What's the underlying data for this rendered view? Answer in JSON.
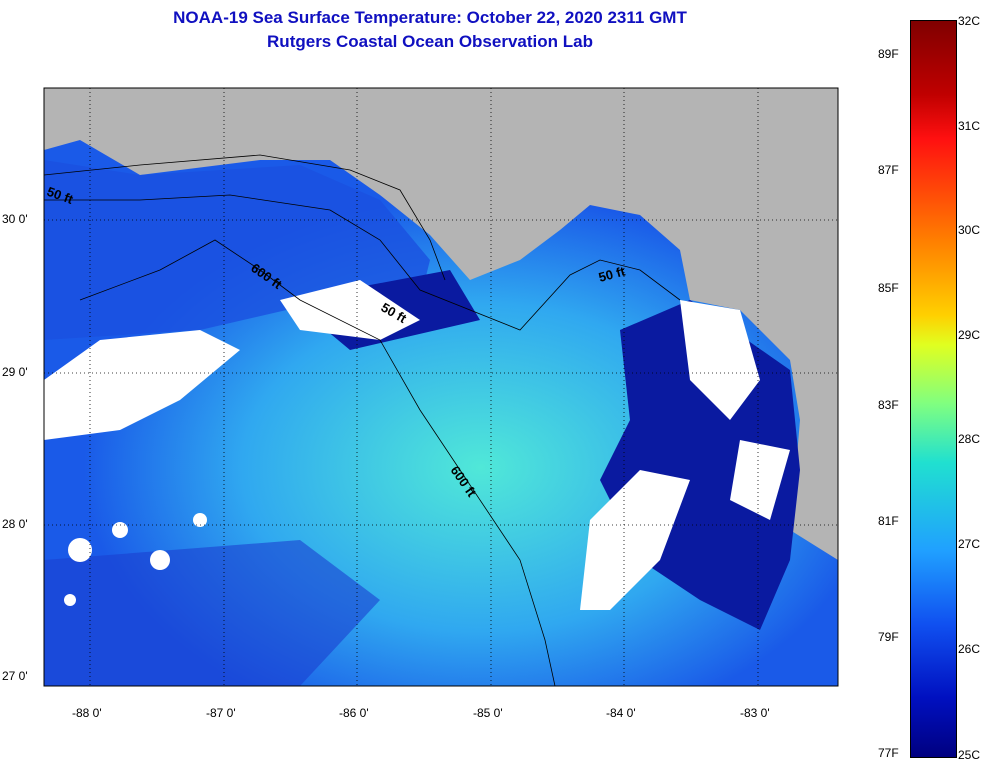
{
  "title": {
    "line1": "NOAA-19 Sea Surface Temperature:  October 22, 2020 2311 GMT",
    "line2": "Rutgers Coastal Ocean Observation Lab"
  },
  "map": {
    "lat_labels": [
      "30 0'",
      "29 0'",
      "28 0'",
      "27 0'"
    ],
    "lon_labels": [
      "-88 0'",
      "-87 0'",
      "-86 0'",
      "-85 0'",
      "-84 0'",
      "-83 0'"
    ],
    "contour_labels": [
      "50 ft",
      "600 ft",
      "50 ft",
      "600 ft",
      "50 ft"
    ],
    "colors": {
      "land": "#b4b4b4",
      "cloud": "#ffffff",
      "ocean_cold": "#0a1aa0",
      "ocean_mid": "#1e6cf0",
      "ocean_warm": "#40d8e8"
    }
  },
  "colorbar": {
    "celsius": [
      "32C",
      "31C",
      "30C",
      "29C",
      "28C",
      "27C",
      "26C",
      "25C"
    ],
    "fahrenheit": [
      "89F",
      "87F",
      "85F",
      "83F",
      "81F",
      "79F",
      "77F"
    ]
  }
}
